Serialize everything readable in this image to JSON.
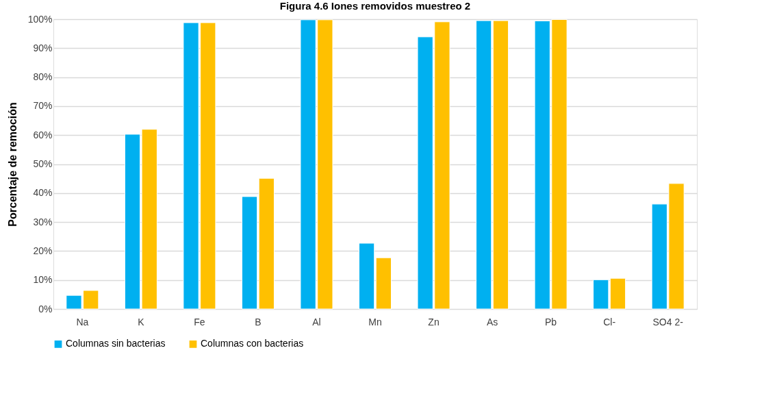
{
  "chart_data": {
    "type": "bar",
    "title": "Figura 4.6 Iones removidos muestreo 2",
    "ylabel": "Porcentaje de remoción",
    "categories": [
      "Na",
      "K",
      "Fe",
      "B",
      "Al",
      "Mn",
      "Zn",
      "As",
      "Pb",
      "Cl-",
      "SO4 2-"
    ],
    "series": [
      {
        "name": "Columnas sin bacterias",
        "color": "#00b0f0",
        "values": [
          4.7,
          60.3,
          98.8,
          38.8,
          99.8,
          22.7,
          93.9,
          99.5,
          99.4,
          10.1,
          36.2
        ]
      },
      {
        "name": "Columnas con bacterias",
        "color": "#ffc000",
        "values": [
          6.4,
          62.0,
          98.8,
          45.1,
          99.8,
          17.7,
          99.1,
          99.5,
          99.9,
          10.6,
          43.3
        ]
      }
    ],
    "ylim": [
      0,
      100
    ],
    "yticks": [
      {
        "value": 0,
        "label": "0%"
      },
      {
        "value": 10,
        "label": "10%"
      },
      {
        "value": 20,
        "label": "20%"
      },
      {
        "value": 30,
        "label": "30%"
      },
      {
        "value": 40,
        "label": "40%"
      },
      {
        "value": 50,
        "label": "50%"
      },
      {
        "value": 60,
        "label": "60%"
      },
      {
        "value": 70,
        "label": "70%"
      },
      {
        "value": 80,
        "label": "80%"
      },
      {
        "value": 90,
        "label": "90%"
      },
      {
        "value": 100,
        "label": "100%"
      }
    ],
    "grid": "y",
    "legend": "bottom"
  }
}
